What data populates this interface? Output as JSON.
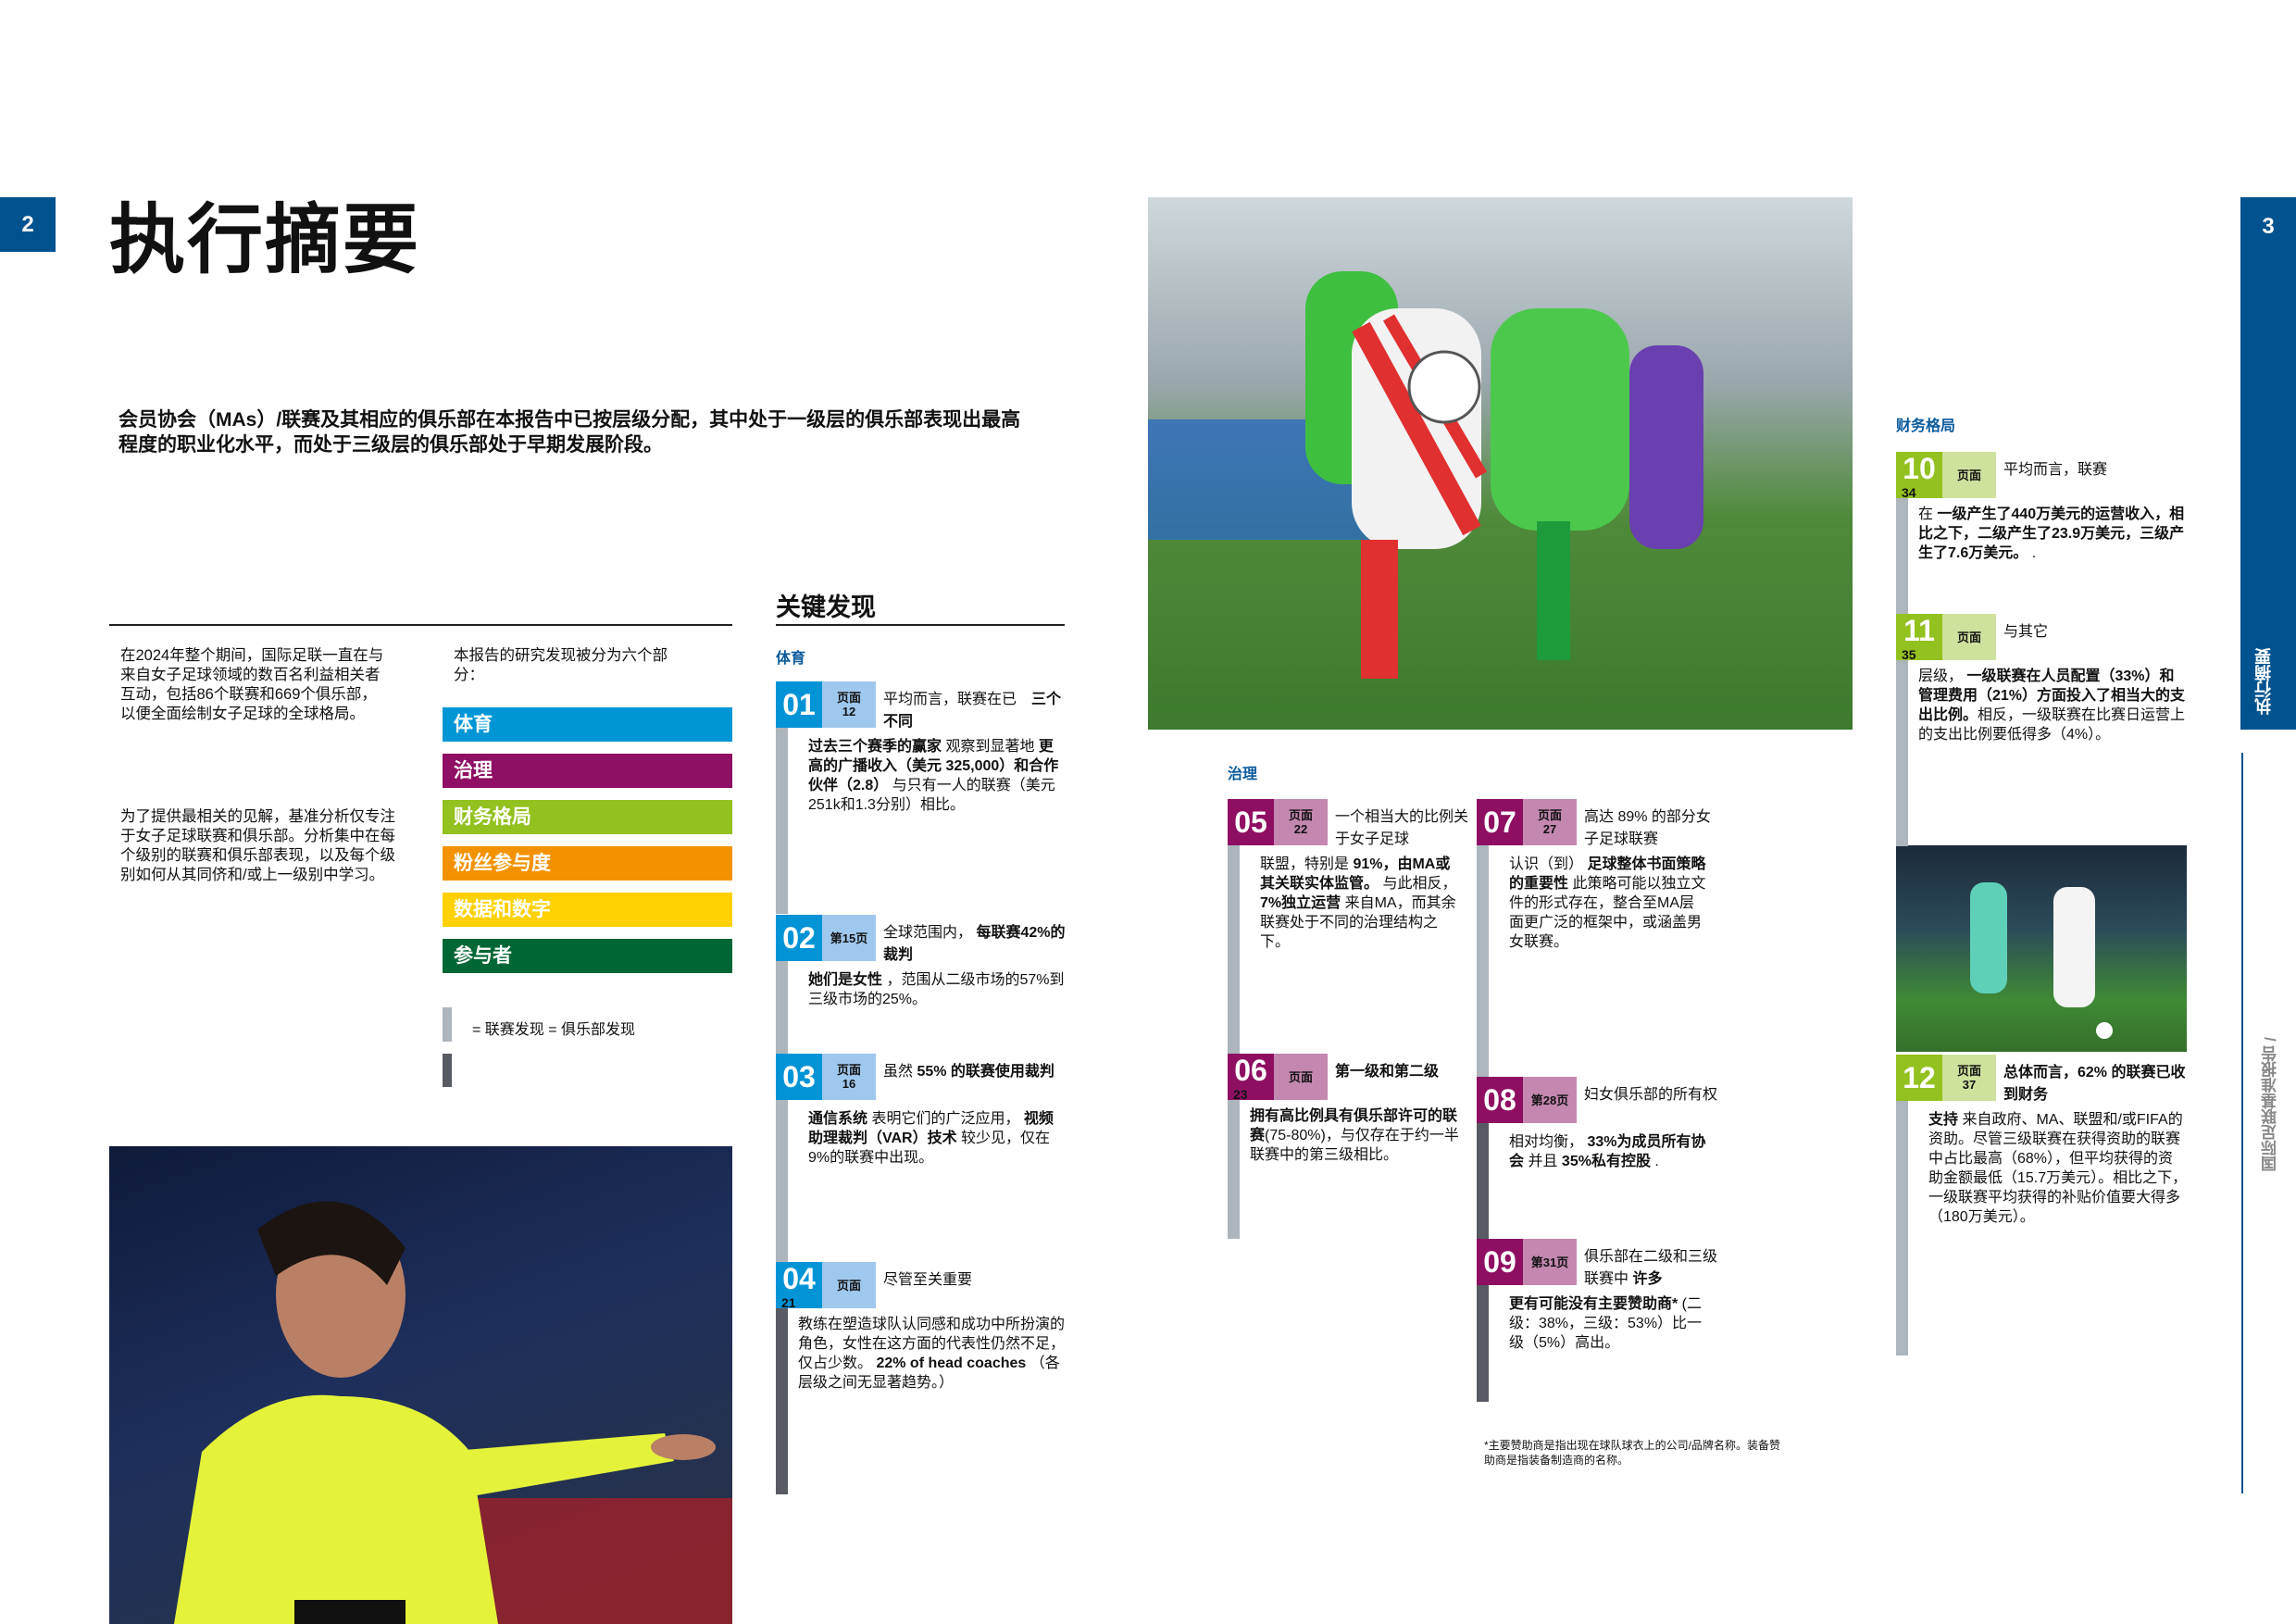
{
  "page_left": {
    "number": "2",
    "title": "执行摘要",
    "intro": "会员协会（MAs）/联赛及其相应的俱乐部在本报告中已按层级分配，其中处于一级层的俱乐部表现出最高程度的职业化水平，而处于三级层的俱乐部处于早期发展阶段。",
    "col1_p1": "在2024年整个期间，国际足联一直在与来自女子足球领域的数百名利益相关者互动，包括86个联赛和669个俱乐部，以便全面绘制女子足球的全球格局。",
    "col1_p2": "为了提供最相关的见解，基准分析仅专注于女子足球联赛和俱乐部。分析集中在每个级别的联赛和俱乐部表现，以及每个级别如何从其同侪和/或上一级别中学习。",
    "col2_intro": "本报告的研究发现被分为六个部分：",
    "sections": [
      {
        "label": "体育",
        "color": "#0096d6"
      },
      {
        "label": "治理",
        "color": "#8e0f64"
      },
      {
        "label": "财务格局",
        "color": "#93c11f"
      },
      {
        "label": "粉丝参与度",
        "color": "#f39200"
      },
      {
        "label": "数据和数字",
        "color": "#ffd100"
      },
      {
        "label": "参与者",
        "color": "#006633"
      }
    ],
    "legend": "= 联赛发现 = 俱乐部发现"
  },
  "key_findings": {
    "title": "关键发现",
    "categories": {
      "sport": "体育",
      "governance": "治理",
      "finance": "财务格局"
    },
    "cards": [
      {
        "num": "01",
        "page": [
          "页面",
          "12"
        ],
        "theme": "blue",
        "tone": "light",
        "head": [
          {
            "t": "平均而言，联赛在已　"
          },
          {
            "t": "三个不同",
            "b": true
          }
        ],
        "body": [
          {
            "t": "过去三个赛季的赢家",
            "b": true
          },
          {
            "t": " 观察到显著地 "
          },
          {
            "t": "更高的广播收入（美元 325,000）和合作伙伴（2.8）",
            "b": true
          },
          {
            "t": " 与只有一人的联赛（美元251k和1.3分别）相比。"
          }
        ]
      },
      {
        "num": "02",
        "page": [
          "第15页"
        ],
        "theme": "blue",
        "tone": "light",
        "head": [
          {
            "t": "全球范围内， "
          },
          {
            "t": "每联赛42%的裁判",
            "b": true
          }
        ],
        "body": [
          {
            "t": "她们是女性",
            "b": true
          },
          {
            "t": " ，范围从二级市场的57%到三级市场的25%。"
          }
        ]
      },
      {
        "num": "03",
        "page": [
          "页面",
          "16"
        ],
        "theme": "blue",
        "tone": "light",
        "head": [
          {
            "t": "虽然 "
          },
          {
            "t": "55% 的联赛使用裁判",
            "b": true
          }
        ],
        "body": [
          {
            "t": "通信系统",
            "b": true
          },
          {
            "t": " 表明它们的广泛应用， "
          },
          {
            "t": "视频助理裁判（VAR）技术",
            "b": true
          },
          {
            "t": " 较少见，仅在9%的联赛中出现。"
          }
        ]
      },
      {
        "num": "04",
        "sub": "21",
        "page": [
          "页面"
        ],
        "theme": "blue",
        "tone": "dark",
        "head": [
          {
            "t": "尽管至关重要"
          }
        ],
        "body": [
          {
            "t": "教练在塑造球队认同感和成功中所扮演的角色，女性在这方面的代表性仍然不足，仅占少数。 "
          },
          {
            "t": "22% of head coaches",
            "b": true
          },
          {
            "t": " （各层级之间无显著趋势。）"
          }
        ]
      },
      {
        "num": "05",
        "page": [
          "页面",
          "22"
        ],
        "theme": "purple",
        "tone": "light",
        "head": [
          {
            "t": "一个相当大的比例关于女子足球"
          }
        ],
        "body": [
          {
            "t": "联盟，特别是 "
          },
          {
            "t": "91%，由MA或其关联实体监管。",
            "b": true
          },
          {
            "t": " 与此相反， "
          },
          {
            "t": "7%独立运营",
            "b": true
          },
          {
            "t": " 来自MA，而其余联赛处于不同的治理结构之下。"
          }
        ]
      },
      {
        "num": "06",
        "sub": "23",
        "page": [
          "页面"
        ],
        "theme": "purple",
        "tone": "light",
        "head": [
          {
            "t": "第一级和第二级",
            "b": true
          }
        ],
        "body": [
          {
            "t": "拥有高比例具有俱乐部许可的联赛",
            "b": true
          },
          {
            "t": "(75-80%)，与仅存在于约一半联赛中的第三级相比。"
          }
        ]
      },
      {
        "num": "07",
        "page": [
          "页面",
          "27"
        ],
        "theme": "purple",
        "tone": "light",
        "head": [
          {
            "t": "高达 89% 的部分女子足球联赛"
          }
        ],
        "body": [
          {
            "t": "认识（到） "
          },
          {
            "t": "足球整体书面策略的重要性",
            "b": true
          },
          {
            "t": " 此策略可能以独立文件的形式存在，整合至MA层面更广泛的框架中，或涵盖男女联赛。"
          }
        ]
      },
      {
        "num": "08",
        "page": [
          "第28页"
        ],
        "theme": "purple",
        "tone": "dark",
        "head": [
          {
            "t": "妇女俱乐部的所有权"
          }
        ],
        "body": [
          {
            "t": "相对均衡， "
          },
          {
            "t": "33%为成员所有协会",
            "b": true
          },
          {
            "t": " 并且 "
          },
          {
            "t": "35%私有控股",
            "b": true
          },
          {
            "t": " ."
          }
        ]
      },
      {
        "num": "09",
        "page": [
          "第31页"
        ],
        "theme": "purple",
        "tone": "dark",
        "head": [
          {
            "t": "俱乐部在二级和三级联赛中 "
          },
          {
            "t": "许多",
            "b": true
          }
        ],
        "body": [
          {
            "t": "更有可能没有主要赞助商*",
            "b": true
          },
          {
            "t": " (二级：38%，三级：53%）比一级（5%）高出。"
          }
        ]
      },
      {
        "num": "10",
        "sub": "34",
        "page": [
          "页面"
        ],
        "theme": "green",
        "tone": "light",
        "head": [
          {
            "t": "平均而言，联赛"
          }
        ],
        "body": [
          {
            "t": "在 "
          },
          {
            "t": "一级产生了440万美元的运营收入，相比之下，二级产生了23.9万美元，三级产生了7.6万美元。",
            "b": true
          },
          {
            "t": " ."
          }
        ]
      },
      {
        "num": "11",
        "sub": "35",
        "page": [
          "页面"
        ],
        "theme": "green",
        "tone": "light",
        "head": [
          {
            "t": "与其它"
          }
        ],
        "body": [
          {
            "t": "层级， "
          },
          {
            "t": "一级联赛在人员配置（33%）和管理费用（21%）方面投入了相当大的支出比例。",
            "b": true
          },
          {
            "t": "相反，一级联赛在比赛日运营上的支出比例要低得多（4%）。"
          }
        ]
      },
      {
        "num": "12",
        "page": [
          "页面",
          "37"
        ],
        "theme": "green",
        "tone": "light",
        "head": [
          {
            "t": "总体而言，62% 的联赛已收到财务",
            "b": true
          }
        ],
        "body": [
          {
            "t": "支持",
            "b": true
          },
          {
            "t": " 来自政府、MA、联盟和/或FIFA的资助。尽管三级联赛在获得资助的联赛中占比最高（68%），但平均获得的资助金额最低（15.7万美元）。相比之下，一级联赛平均获得的补贴价值要大得多（180万美元）。"
          }
        ]
      }
    ],
    "footnote": "*主要赞助商是指出现在球队球衣上的公司/品牌名称。装备赞助商是指装备制造商的名称。"
  },
  "page_right": {
    "number": "3",
    "section_tab": "执行摘要",
    "report_name": "国际足联基准报告 /"
  },
  "themes": {
    "blue": {
      "main": "#0094d6",
      "light": "#9fc8ee"
    },
    "purple": {
      "main": "#8e0f62",
      "light": "#c487b0"
    },
    "green": {
      "main": "#93c11f",
      "light": "#cfe29d"
    }
  },
  "bar_tones": {
    "light": "#adb5bd",
    "dark": "#585b63"
  },
  "brand_color": "#00538f"
}
